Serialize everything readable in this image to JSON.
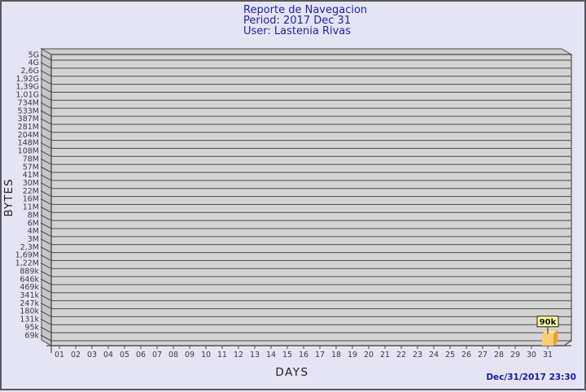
{
  "header": {
    "title": "Reporte de Navegacion",
    "period": "Period: 2017 Dec 31",
    "user": "User: Lastenia Rivas"
  },
  "footer": {
    "timestamp": "Dec/31/2017 23:30"
  },
  "chart_data": {
    "type": "bar",
    "title": "Reporte de Navegacion",
    "subtitle": "Period: 2017 Dec 31 — User: Lastenia Rivas",
    "xlabel": "DAYS",
    "ylabel": "BYTES",
    "y_scale": "log",
    "ylim_bottom_label": "69k",
    "ylim_top_label": "5G",
    "ylim": [
      69000,
      5000000000
    ],
    "y_tick_labels": [
      "5G",
      "4G",
      "2,6G",
      "1,92G",
      "1,39G",
      "1,01G",
      "734M",
      "533M",
      "387M",
      "281M",
      "204M",
      "148M",
      "108M",
      "78M",
      "57M",
      "41M",
      "30M",
      "22M",
      "16M",
      "11M",
      "8M",
      "6M",
      "4M",
      "3M",
      "2,3M",
      "1,69M",
      "1,22M",
      "889k",
      "646k",
      "469k",
      "341k",
      "247k",
      "180k",
      "131k",
      "95k",
      "69k"
    ],
    "categories": [
      "01",
      "02",
      "03",
      "04",
      "05",
      "06",
      "07",
      "08",
      "09",
      "10",
      "11",
      "12",
      "13",
      "14",
      "15",
      "16",
      "17",
      "18",
      "19",
      "20",
      "21",
      "22",
      "23",
      "24",
      "25",
      "26",
      "27",
      "28",
      "29",
      "30",
      "31"
    ],
    "values": [
      null,
      null,
      null,
      null,
      null,
      null,
      null,
      null,
      null,
      null,
      null,
      null,
      null,
      null,
      null,
      null,
      null,
      null,
      null,
      null,
      null,
      null,
      null,
      null,
      null,
      null,
      null,
      null,
      null,
      null,
      90000
    ],
    "annotations": [
      {
        "category": "31",
        "label": "90k"
      }
    ],
    "grid": true,
    "legend": "none",
    "colors": {
      "page_bg": "#e4e4f4",
      "plot_face": "#d4d4d4",
      "plot_wall": "#c6c6c6",
      "plot_top": "#cecece",
      "grid": "#4a4a4a",
      "axis_text": "#3c3c3c",
      "title_text": "#2222aa",
      "timestamp_text": "#1a1aae",
      "bar_front": "#fccb72",
      "bar_side": "#e89e33",
      "bar_top": "#fadf9e",
      "annotation_bg": "#ffff9e",
      "annotation_border": "#1a1a1a",
      "annotation_text": "#111111"
    }
  }
}
